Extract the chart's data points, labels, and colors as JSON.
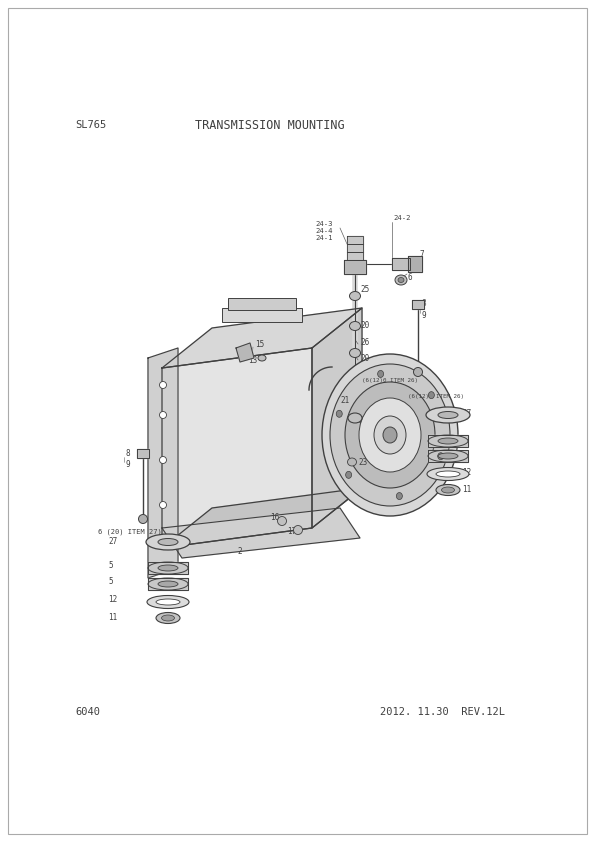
{
  "title": "TRANSMISSION MOUNTING",
  "model": "SL765",
  "page": "6040",
  "date": "2012. 11.30  REV.12L",
  "bg_color": "#ffffff",
  "line_color": "#404040",
  "text_color": "#404040",
  "fig_width": 5.95,
  "fig_height": 8.42,
  "dpi": 100
}
